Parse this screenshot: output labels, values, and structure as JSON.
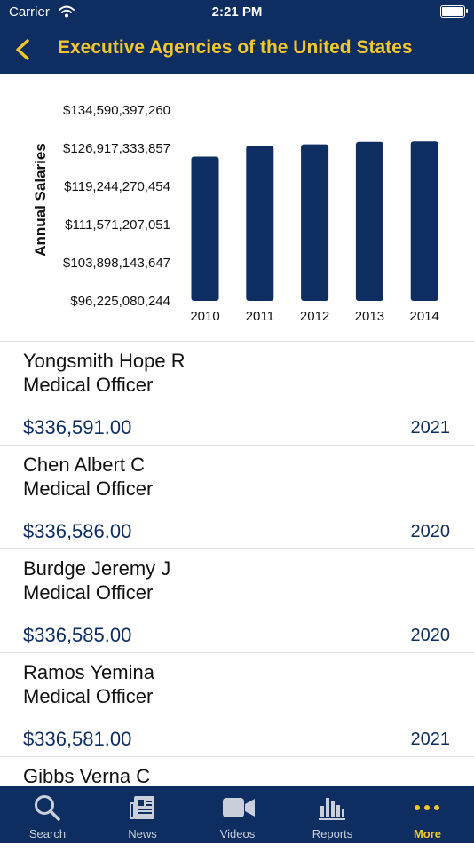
{
  "status_bar": {
    "carrier": "Carrier",
    "time": "2:21 PM"
  },
  "nav": {
    "title": "Executive Agencies of the United States"
  },
  "chart_data": {
    "type": "bar",
    "categories": [
      "2010",
      "2011",
      "2012",
      "2013",
      "2014"
    ],
    "values": [
      125230000000,
      127400000000,
      127700000000,
      128200000000,
      128300000000
    ],
    "ylabel": "Annual Salaries",
    "yticks": [
      "$96,225,080,244",
      "$103,898,143,647",
      "$111,571,207,051",
      "$119,244,270,454",
      "$126,917,333,857",
      "$134,590,397,260"
    ],
    "ylim": [
      96225080244,
      134590397260
    ],
    "bar_color": "#0e2e62"
  },
  "rows": [
    {
      "name": "Yongsmith Hope R",
      "title": "Medical Officer",
      "amount": "$336,591.00",
      "year": "2021"
    },
    {
      "name": "Chen Albert C",
      "title": "Medical Officer",
      "amount": "$336,586.00",
      "year": "2020"
    },
    {
      "name": "Burdge Jeremy J",
      "title": "Medical Officer",
      "amount": "$336,585.00",
      "year": "2020"
    },
    {
      "name": "Ramos Yemina",
      "title": "Medical Officer",
      "amount": "$336,581.00",
      "year": "2021"
    },
    {
      "name": "Gibbs Verna C",
      "title": "",
      "amount": "",
      "year": ""
    }
  ],
  "tabs": [
    {
      "label": "Search",
      "icon": "search-icon"
    },
    {
      "label": "News",
      "icon": "newspaper-icon"
    },
    {
      "label": "Videos",
      "icon": "video-camera-icon"
    },
    {
      "label": "Reports",
      "icon": "bar-chart-icon"
    },
    {
      "label": "More",
      "icon": "more-dots-icon"
    }
  ],
  "colors": {
    "navy": "#0e2e62",
    "gold": "#f2c72e"
  }
}
